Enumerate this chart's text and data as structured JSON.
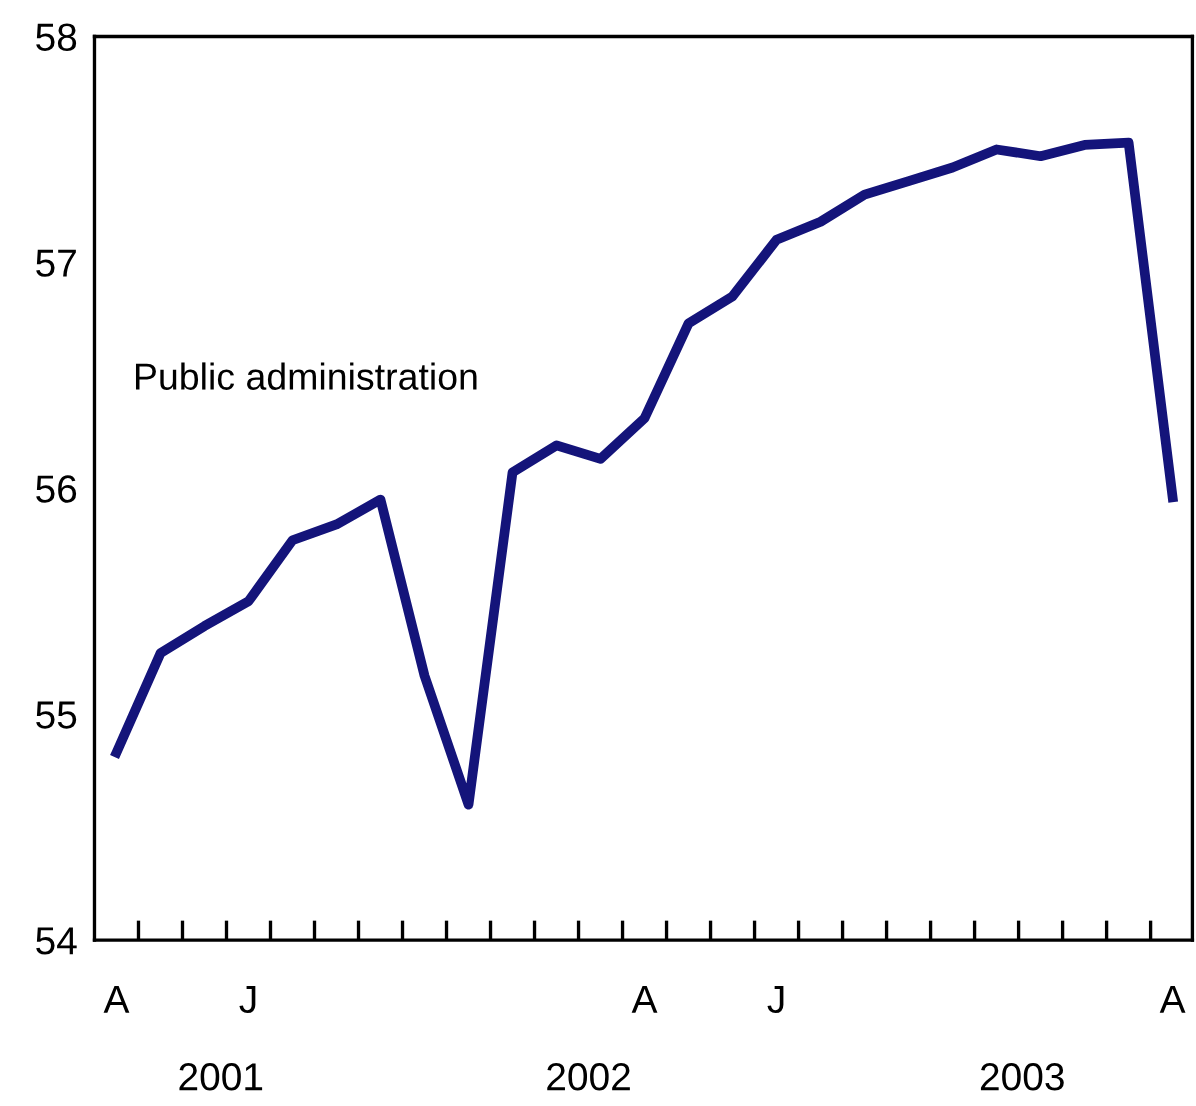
{
  "chart_data": {
    "type": "line",
    "annotations": [
      "Public administration",
      "2001",
      "2002",
      "2003"
    ],
    "categories": [
      "A",
      null,
      null,
      "J",
      null,
      null,
      null,
      null,
      null,
      null,
      null,
      null,
      "A",
      null,
      null,
      "J",
      null,
      null,
      null,
      null,
      null,
      null,
      null,
      null,
      "A"
    ],
    "series": [
      {
        "color": "#14147a",
        "values": [
          54.83,
          55.27,
          55.39,
          55.5,
          55.77,
          55.84,
          55.95,
          55.17,
          54.6,
          56.07,
          56.19,
          56.13,
          56.31,
          56.73,
          56.85,
          57.1,
          57.18,
          57.3,
          57.36,
          57.42,
          57.5,
          57.47,
          57.52,
          57.53,
          55.96
        ]
      }
    ],
    "ylim": [
      54,
      58
    ],
    "yticks": [
      54,
      55,
      56,
      57,
      58
    ],
    "marker": "none",
    "line_style": "solid"
  }
}
